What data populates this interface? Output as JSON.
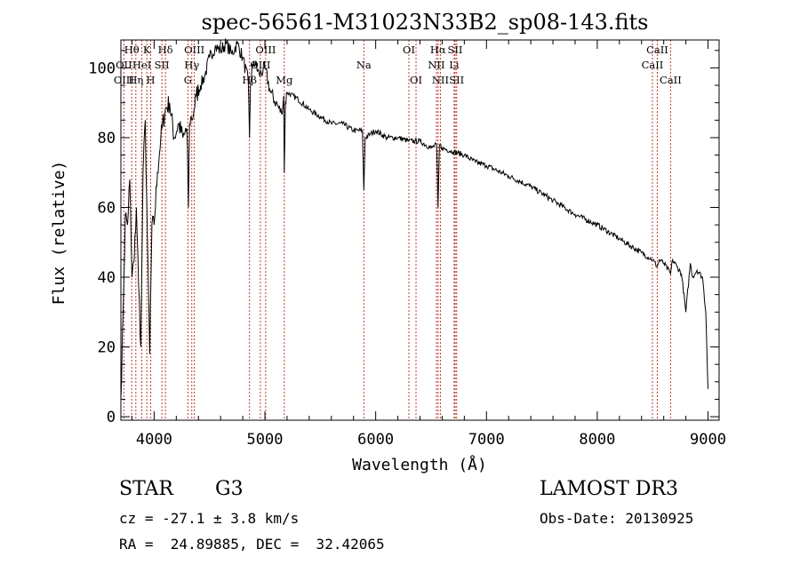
{
  "chart_data": {
    "type": "line",
    "title": "spec-56561-M31023N33B2_sp08-143.fits",
    "xlabel": "Wavelength (Å)",
    "ylabel": "Flux (relative)",
    "xlim": [
      3700,
      9100
    ],
    "ylim": [
      -1,
      108
    ],
    "x_ticks": [
      4000,
      5000,
      6000,
      7000,
      8000,
      9000
    ],
    "y_ticks": [
      0,
      20,
      40,
      60,
      80,
      100
    ],
    "grid": false,
    "series": [
      {
        "name": "flux",
        "x": [
          3700,
          3720,
          3740,
          3760,
          3780,
          3800,
          3820,
          3840,
          3860,
          3880,
          3900,
          3920,
          3940,
          3960,
          3980,
          4000,
          4030,
          4060,
          4100,
          4140,
          4180,
          4220,
          4260,
          4290,
          4300,
          4310,
          4320,
          4330,
          4340,
          4360,
          4380,
          4420,
          4460,
          4500,
          4550,
          4600,
          4650,
          4700,
          4750,
          4800,
          4850,
          4861,
          4870,
          4900,
          4950,
          5000,
          5050,
          5100,
          5150,
          5170,
          5175,
          5185,
          5200,
          5300,
          5400,
          5500,
          5600,
          5700,
          5800,
          5880,
          5893,
          5905,
          5950,
          6000,
          6100,
          6200,
          6300,
          6400,
          6500,
          6550,
          6563,
          6575,
          6600,
          6700,
          6800,
          6900,
          7000,
          7200,
          7400,
          7600,
          7800,
          8000,
          8200,
          8400,
          8500,
          8542,
          8560,
          8600,
          8662,
          8680,
          8720,
          8760,
          8800,
          8840,
          8860,
          8900,
          8950,
          8980,
          9000
        ],
        "y": [
          5,
          30,
          58,
          55,
          68,
          40,
          45,
          60,
          38,
          20,
          70,
          85,
          50,
          18,
          55,
          55,
          70,
          80,
          88,
          90,
          80,
          84,
          80,
          82,
          78,
          60,
          84,
          86,
          85,
          88,
          92,
          95,
          98,
          103,
          106,
          105,
          107,
          104,
          107,
          103,
          96,
          80,
          96,
          102,
          98,
          100,
          93,
          90,
          87,
          92,
          70,
          90,
          93,
          91,
          88,
          86,
          84,
          84,
          82,
          82,
          65,
          80,
          81,
          82,
          80,
          80,
          79,
          79,
          77,
          78,
          60,
          78,
          77,
          76,
          75,
          73,
          72,
          69,
          66,
          62,
          58,
          55,
          51,
          47,
          45,
          43,
          45,
          44,
          41,
          45,
          43,
          41,
          30,
          44,
          40,
          42,
          40,
          30,
          8
        ]
      }
    ],
    "spectral_lines": [
      {
        "label": "Hθ",
        "wavelength": 3798,
        "row": 0
      },
      {
        "label": "OII",
        "wavelength": 3727,
        "row": 1
      },
      {
        "label": "OIII",
        "wavelength": 3727,
        "row": 2
      },
      {
        "label": "HeI",
        "wavelength": 3889,
        "row": 1
      },
      {
        "label": "Hη",
        "wavelength": 3835,
        "row": 2
      },
      {
        "label": "K",
        "wavelength": 3934,
        "row": 0
      },
      {
        "label": "SII",
        "wavelength": 4070,
        "row": 1
      },
      {
        "label": "H",
        "wavelength": 3969,
        "row": 2
      },
      {
        "label": "Hδ",
        "wavelength": 4102,
        "row": 0
      },
      {
        "label": "OIII",
        "wavelength": 4363,
        "row": 0
      },
      {
        "label": "Hγ",
        "wavelength": 4340,
        "row": 1
      },
      {
        "label": "G",
        "wavelength": 4305,
        "row": 2
      },
      {
        "label": "OIII",
        "wavelength": 5007,
        "row": 0
      },
      {
        "label": "OIII",
        "wavelength": 4959,
        "row": 1
      },
      {
        "label": "Hβ",
        "wavelength": 4861,
        "row": 2
      },
      {
        "label": "Mg",
        "wavelength": 5175,
        "row": 2
      },
      {
        "label": "Na",
        "wavelength": 5893,
        "row": 1
      },
      {
        "label": "OI",
        "wavelength": 6300,
        "row": 0
      },
      {
        "label": "OI",
        "wavelength": 6364,
        "row": 2
      },
      {
        "label": "Hα",
        "wavelength": 6563,
        "row": 0
      },
      {
        "label": "NII",
        "wavelength": 6548,
        "row": 1
      },
      {
        "label": "NII",
        "wavelength": 6584,
        "row": 2
      },
      {
        "label": "SII",
        "wavelength": 6717,
        "row": 0
      },
      {
        "label": "Li",
        "wavelength": 6708,
        "row": 1
      },
      {
        "label": "SII",
        "wavelength": 6731,
        "row": 2
      },
      {
        "label": "CaII",
        "wavelength": 8542,
        "row": 0
      },
      {
        "label": "CaII",
        "wavelength": 8498,
        "row": 1
      },
      {
        "label": "CaII",
        "wavelength": 8662,
        "row": 2
      }
    ],
    "line_marker_color": "#c0392b"
  },
  "info": {
    "object_class": "STAR",
    "subclass": "G3",
    "survey": "LAMOST DR3",
    "velocity": "cz = -27.1 ± 3.8 km/s",
    "obs_date": "Obs-Date: 20130925",
    "coords": "RA =  24.89885, DEC =  32.42065"
  }
}
